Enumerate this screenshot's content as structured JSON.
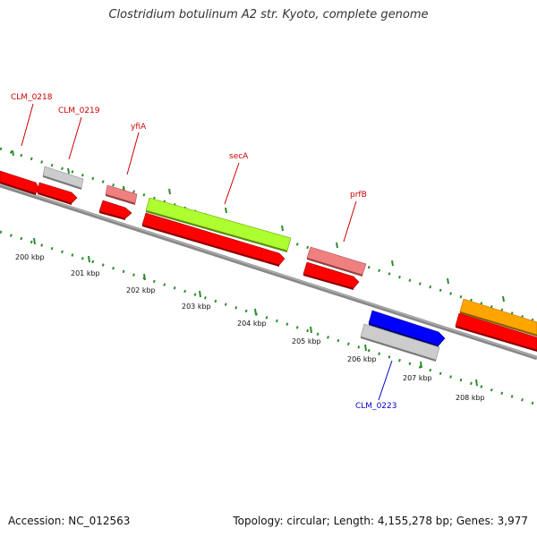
{
  "title": "Clostridium botulinum A2 str. Kyoto, complete genome",
  "footer": {
    "accession": "Accession: NC_012563",
    "summary": "Topology: circular; Length: 4,155,278 bp; Genes: 3,977"
  },
  "colors": {
    "backbone": "#808080",
    "gene_red": "#ff0000",
    "gene_pink": "#f08080",
    "gene_grey": "#c8c8c8",
    "gene_green": "#adff2f",
    "gene_blue": "#0000ff",
    "gene_orange": "#ffa500",
    "label_red": "#cc0000",
    "label_blue": "#0000cc",
    "tick": "#2e8b2e"
  },
  "scale_labels": [
    "200 kbp",
    "201 kbp",
    "202 kbp",
    "203 kbp",
    "204 kbp",
    "205 kbp",
    "206 kbp",
    "207 kbp",
    "208 kbp"
  ],
  "gene_labels": [
    {
      "text": "CLM_0218",
      "color": "red"
    },
    {
      "text": "CLM_0219",
      "color": "red"
    },
    {
      "text": "yfiA",
      "color": "red"
    },
    {
      "text": "secA",
      "color": "red"
    },
    {
      "text": "prfB",
      "color": "red"
    },
    {
      "text": "CLM_0223",
      "color": "blue"
    }
  ]
}
